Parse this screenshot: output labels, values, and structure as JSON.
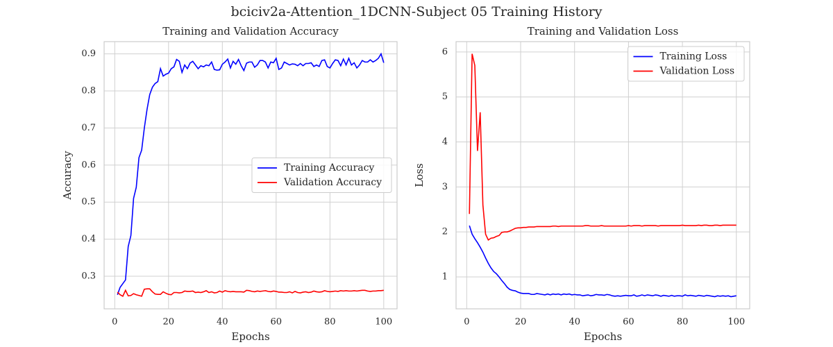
{
  "title": "bciciv2a-Attention_1DCNN-Subject 05 Training History",
  "chart_data": [
    {
      "type": "line",
      "title": "Training and Validation Accuracy",
      "x_label": "Epochs",
      "y_label": "Accuracy",
      "x": [
        1,
        2,
        3,
        4,
        5,
        6,
        7,
        8,
        9,
        10,
        11,
        12,
        13,
        14,
        15,
        16,
        17,
        18,
        19,
        20,
        21,
        22,
        23,
        24,
        25,
        26,
        27,
        28,
        29,
        30,
        31,
        32,
        33,
        34,
        35,
        36,
        37,
        38,
        39,
        40,
        41,
        42,
        43,
        44,
        45,
        46,
        47,
        48,
        49,
        50,
        51,
        52,
        53,
        54,
        55,
        56,
        57,
        58,
        59,
        60,
        61,
        62,
        63,
        64,
        65,
        66,
        67,
        68,
        69,
        70,
        71,
        72,
        73,
        74,
        75,
        76,
        77,
        78,
        79,
        80,
        81,
        82,
        83,
        84,
        85,
        86,
        87,
        88,
        89,
        90,
        91,
        92,
        93,
        94,
        95,
        96,
        97,
        98,
        99,
        100
      ],
      "series": [
        {
          "name": "Training Accuracy",
          "color": "#0000ff",
          "values": [
            0.25,
            0.27,
            0.28,
            0.29,
            0.38,
            0.41,
            0.51,
            0.54,
            0.62,
            0.64,
            0.7,
            0.75,
            0.79,
            0.81,
            0.82,
            0.825,
            0.86,
            0.84,
            0.845,
            0.848,
            0.86,
            0.865,
            0.885,
            0.88,
            0.85,
            0.87,
            0.86,
            0.875,
            0.88,
            0.87,
            0.86,
            0.868,
            0.865,
            0.87,
            0.868,
            0.878,
            0.858,
            0.856,
            0.857,
            0.872,
            0.878,
            0.886,
            0.862,
            0.88,
            0.872,
            0.885,
            0.868,
            0.855,
            0.875,
            0.878,
            0.878,
            0.864,
            0.87,
            0.882,
            0.882,
            0.878,
            0.862,
            0.878,
            0.876,
            0.888,
            0.858,
            0.862,
            0.878,
            0.874,
            0.87,
            0.873,
            0.872,
            0.868,
            0.874,
            0.868,
            0.874,
            0.874,
            0.876,
            0.866,
            0.87,
            0.866,
            0.882,
            0.884,
            0.866,
            0.862,
            0.874,
            0.884,
            0.882,
            0.868,
            0.886,
            0.87,
            0.888,
            0.87,
            0.876,
            0.862,
            0.87,
            0.882,
            0.878,
            0.878,
            0.884,
            0.878,
            0.882,
            0.888,
            0.9,
            0.876
          ]
        },
        {
          "name": "Validation Accuracy",
          "color": "#ff0000",
          "values": [
            0.257,
            0.25,
            0.246,
            0.262,
            0.247,
            0.248,
            0.253,
            0.25,
            0.248,
            0.246,
            0.265,
            0.266,
            0.266,
            0.258,
            0.252,
            0.251,
            0.251,
            0.258,
            0.254,
            0.251,
            0.25,
            0.256,
            0.256,
            0.255,
            0.256,
            0.26,
            0.259,
            0.259,
            0.26,
            0.256,
            0.257,
            0.256,
            0.258,
            0.261,
            0.256,
            0.258,
            0.255,
            0.256,
            0.26,
            0.257,
            0.261,
            0.259,
            0.258,
            0.259,
            0.258,
            0.258,
            0.258,
            0.257,
            0.262,
            0.261,
            0.259,
            0.258,
            0.26,
            0.259,
            0.26,
            0.261,
            0.259,
            0.258,
            0.26,
            0.259,
            0.257,
            0.257,
            0.256,
            0.256,
            0.258,
            0.255,
            0.259,
            0.256,
            0.255,
            0.257,
            0.258,
            0.256,
            0.257,
            0.26,
            0.258,
            0.257,
            0.258,
            0.261,
            0.259,
            0.258,
            0.259,
            0.26,
            0.259,
            0.261,
            0.26,
            0.261,
            0.26,
            0.26,
            0.261,
            0.26,
            0.261,
            0.262,
            0.262,
            0.26,
            0.259,
            0.26,
            0.26,
            0.261,
            0.261,
            0.262
          ]
        }
      ],
      "xlim": [
        -3.95,
        104.95
      ],
      "xticks": [
        0,
        20,
        40,
        60,
        80,
        100
      ],
      "ylim": [
        0.212,
        0.933
      ],
      "yticks": [
        0.3,
        0.4,
        0.5,
        0.6,
        0.7,
        0.8,
        0.9
      ],
      "grid": true,
      "legend": "center right"
    },
    {
      "type": "line",
      "title": "Training and Validation Loss",
      "x_label": "Epochs",
      "y_label": "Loss",
      "x": [
        1,
        2,
        3,
        4,
        5,
        6,
        7,
        8,
        9,
        10,
        11,
        12,
        13,
        14,
        15,
        16,
        17,
        18,
        19,
        20,
        21,
        22,
        23,
        24,
        25,
        26,
        27,
        28,
        29,
        30,
        31,
        32,
        33,
        34,
        35,
        36,
        37,
        38,
        39,
        40,
        41,
        42,
        43,
        44,
        45,
        46,
        47,
        48,
        49,
        50,
        51,
        52,
        53,
        54,
        55,
        56,
        57,
        58,
        59,
        60,
        61,
        62,
        63,
        64,
        65,
        66,
        67,
        68,
        69,
        70,
        71,
        72,
        73,
        74,
        75,
        76,
        77,
        78,
        79,
        80,
        81,
        82,
        83,
        84,
        85,
        86,
        87,
        88,
        89,
        90,
        91,
        92,
        93,
        94,
        95,
        96,
        97,
        98,
        99,
        100
      ],
      "series": [
        {
          "name": "Training Loss",
          "color": "#0000ff",
          "values": [
            2.14,
            1.95,
            1.85,
            1.76,
            1.66,
            1.55,
            1.42,
            1.3,
            1.2,
            1.12,
            1.07,
            1.0,
            0.92,
            0.85,
            0.77,
            0.72,
            0.7,
            0.69,
            0.66,
            0.64,
            0.63,
            0.63,
            0.63,
            0.61,
            0.61,
            0.63,
            0.62,
            0.61,
            0.6,
            0.62,
            0.6,
            0.62,
            0.61,
            0.62,
            0.6,
            0.62,
            0.61,
            0.62,
            0.6,
            0.61,
            0.6,
            0.6,
            0.58,
            0.59,
            0.6,
            0.58,
            0.59,
            0.61,
            0.6,
            0.6,
            0.59,
            0.61,
            0.6,
            0.58,
            0.57,
            0.58,
            0.57,
            0.58,
            0.59,
            0.58,
            0.58,
            0.6,
            0.57,
            0.58,
            0.6,
            0.58,
            0.6,
            0.59,
            0.58,
            0.6,
            0.59,
            0.57,
            0.59,
            0.58,
            0.57,
            0.59,
            0.57,
            0.58,
            0.58,
            0.57,
            0.6,
            0.58,
            0.59,
            0.58,
            0.57,
            0.59,
            0.58,
            0.57,
            0.59,
            0.58,
            0.57,
            0.56,
            0.58,
            0.57,
            0.58,
            0.57,
            0.58,
            0.56,
            0.57,
            0.58
          ]
        },
        {
          "name": "Validation Loss",
          "color": "#ff0000",
          "values": [
            2.4,
            5.96,
            5.7,
            3.8,
            4.66,
            2.6,
            1.95,
            1.82,
            1.86,
            1.87,
            1.9,
            1.92,
            1.99,
            2.0,
            2.0,
            2.02,
            2.05,
            2.08,
            2.09,
            2.09,
            2.1,
            2.1,
            2.11,
            2.11,
            2.11,
            2.12,
            2.12,
            2.12,
            2.12,
            2.12,
            2.12,
            2.13,
            2.13,
            2.12,
            2.13,
            2.13,
            2.13,
            2.13,
            2.13,
            2.13,
            2.13,
            2.13,
            2.13,
            2.14,
            2.14,
            2.13,
            2.13,
            2.13,
            2.13,
            2.14,
            2.13,
            2.13,
            2.13,
            2.13,
            2.13,
            2.13,
            2.13,
            2.13,
            2.13,
            2.14,
            2.13,
            2.14,
            2.14,
            2.14,
            2.13,
            2.14,
            2.14,
            2.14,
            2.14,
            2.14,
            2.13,
            2.14,
            2.14,
            2.14,
            2.14,
            2.14,
            2.14,
            2.14,
            2.14,
            2.15,
            2.14,
            2.14,
            2.14,
            2.14,
            2.14,
            2.15,
            2.14,
            2.15,
            2.15,
            2.14,
            2.14,
            2.15,
            2.15,
            2.14,
            2.15,
            2.15,
            2.15,
            2.15,
            2.15,
            2.15
          ]
        }
      ],
      "xlim": [
        -3.95,
        104.95
      ],
      "xticks": [
        0,
        20,
        40,
        60,
        80,
        100
      ],
      "ylim": [
        0.29,
        6.23
      ],
      "yticks": [
        1,
        2,
        3,
        4,
        5,
        6
      ],
      "grid": true,
      "legend": "upper right"
    }
  ]
}
